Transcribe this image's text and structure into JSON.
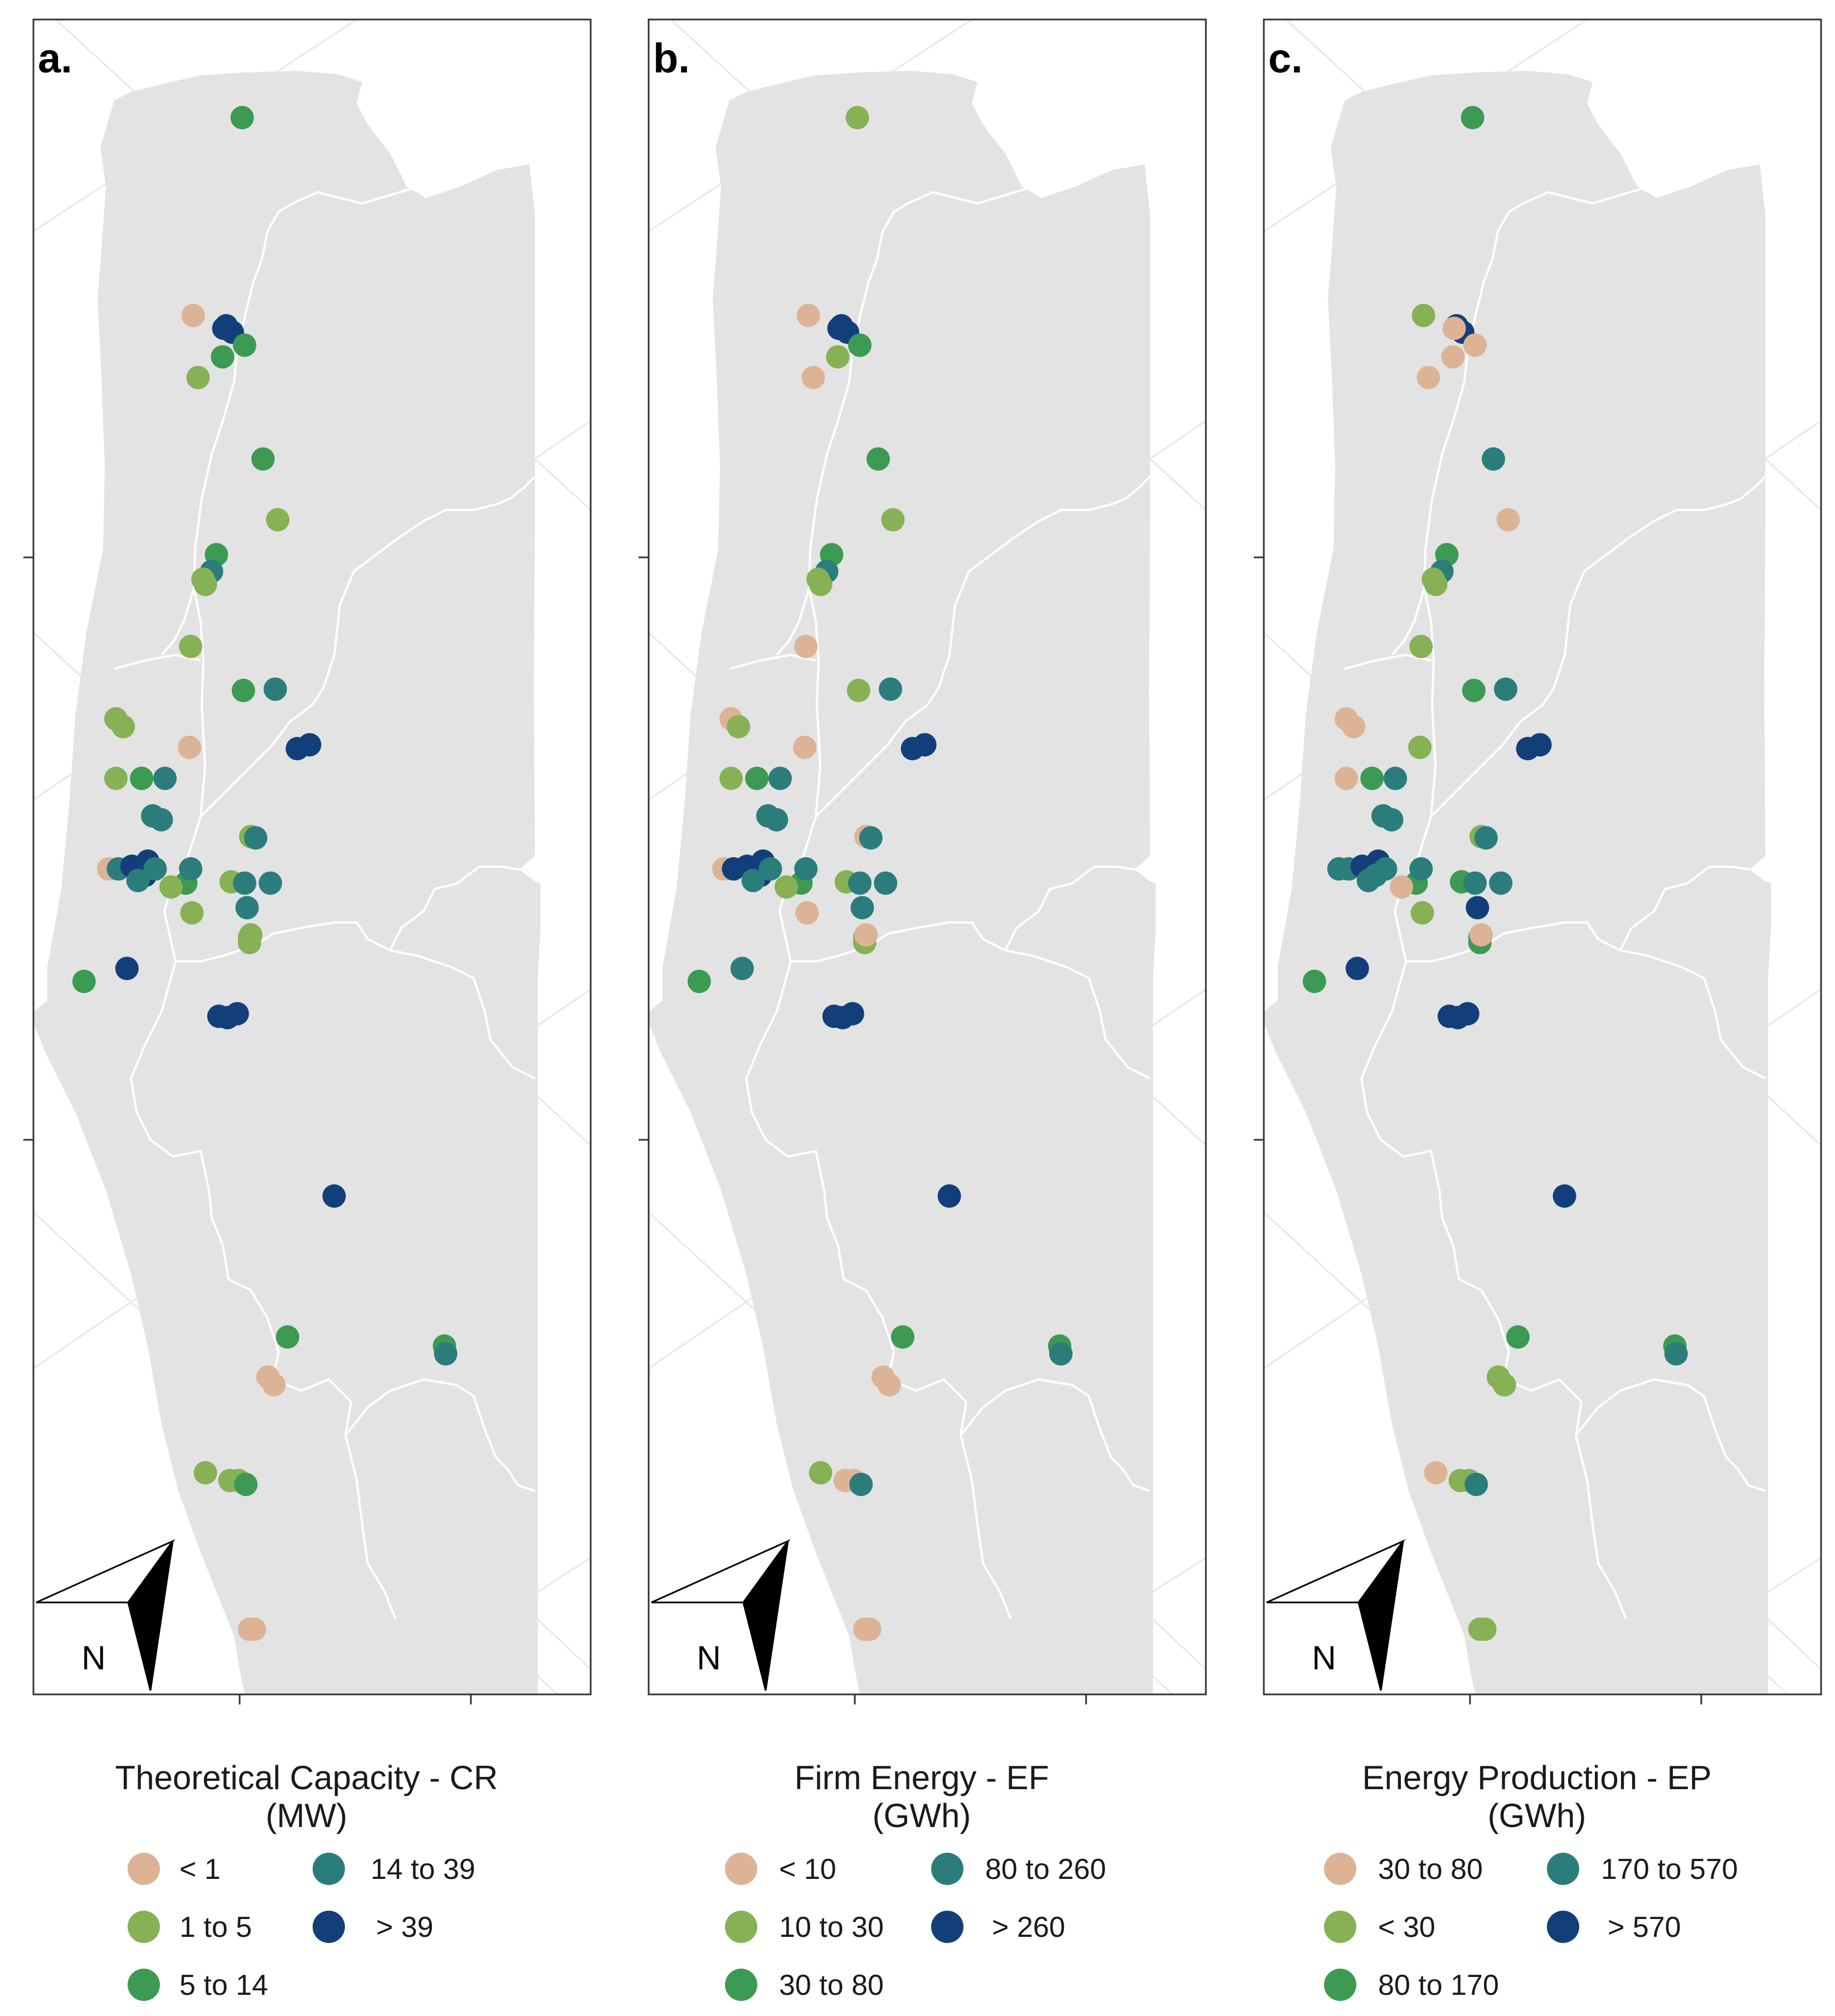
{
  "colors": {
    "land": "#e3e3e3",
    "boundary": "#ffffff",
    "graticule": "#e8e8e8",
    "frame": "#333333",
    "class1": "#dcb495",
    "class2": "#86b155",
    "class3": "#3c9a52",
    "class4": "#2b7d7c",
    "class5": "#123f7a"
  },
  "north_arrow": {
    "label": "N",
    "icon": "north-arrow-icon"
  },
  "panels": [
    {
      "label": "a.",
      "legend": {
        "title_line1": "Theoretical Capacity - CR",
        "title_line2": "(MW)",
        "items": [
          {
            "label": "< 1",
            "color": "#dcb495"
          },
          {
            "label": "1  to  5",
            "color": "#86b155"
          },
          {
            "label": "5  to  14",
            "color": "#3c9a52"
          },
          {
            "label": "14  to  39",
            "color": "#2b7d7c"
          },
          {
            "label": "> 39",
            "color": "#123f7a"
          }
        ]
      },
      "points": [
        [
          1,
          "g"
        ],
        [
          2,
          "p"
        ],
        [
          3,
          "b"
        ],
        [
          4,
          "b"
        ],
        [
          5,
          "b"
        ],
        [
          6,
          "g"
        ],
        [
          7,
          "g"
        ],
        [
          8,
          "l"
        ],
        [
          9,
          "g"
        ],
        [
          10,
          "l"
        ],
        [
          11,
          "g"
        ],
        [
          12,
          "t"
        ],
        [
          13,
          "l"
        ],
        [
          14,
          "l"
        ],
        [
          15,
          "l"
        ],
        [
          16,
          "g"
        ],
        [
          17,
          "t"
        ],
        [
          18,
          "l"
        ],
        [
          19,
          "l"
        ],
        [
          20,
          "p"
        ],
        [
          21,
          "b"
        ],
        [
          22,
          "b"
        ],
        [
          23,
          "l"
        ],
        [
          24,
          "g"
        ],
        [
          25,
          "t"
        ],
        [
          26,
          "t"
        ],
        [
          27,
          "t"
        ],
        [
          28,
          "l"
        ],
        [
          29,
          "t"
        ],
        [
          30,
          "p"
        ],
        [
          31,
          "t"
        ],
        [
          32,
          "b"
        ],
        [
          33,
          "b"
        ],
        [
          34,
          "b"
        ],
        [
          35,
          "t"
        ],
        [
          36,
          "t"
        ],
        [
          37,
          "g"
        ],
        [
          38,
          "l"
        ],
        [
          39,
          "l"
        ],
        [
          40,
          "t"
        ],
        [
          41,
          "l"
        ],
        [
          42,
          "t"
        ],
        [
          43,
          "t"
        ],
        [
          44,
          "t"
        ],
        [
          45,
          "l"
        ],
        [
          46,
          "l"
        ],
        [
          47,
          "l"
        ],
        [
          48,
          "g"
        ],
        [
          49,
          "b"
        ],
        [
          50,
          "b"
        ],
        [
          51,
          "b"
        ],
        [
          52,
          "b"
        ],
        [
          53,
          "b"
        ],
        [
          54,
          "g"
        ],
        [
          55,
          "g"
        ],
        [
          56,
          "t"
        ],
        [
          57,
          "p"
        ],
        [
          58,
          "p"
        ],
        [
          59,
          "l"
        ],
        [
          60,
          "l"
        ],
        [
          61,
          "l"
        ],
        [
          62,
          "g"
        ],
        [
          63,
          "p"
        ],
        [
          64,
          "p"
        ]
      ]
    },
    {
      "label": "b.",
      "legend": {
        "title_line1": "Firm Energy - EF",
        "title_line2": "(GWh)",
        "items": [
          {
            "label": "< 10",
            "color": "#dcb495"
          },
          {
            "label": "10  to  30",
            "color": "#86b155"
          },
          {
            "label": "30  to  80",
            "color": "#3c9a52"
          },
          {
            "label": "80  to  260",
            "color": "#2b7d7c"
          },
          {
            "label": "> 260",
            "color": "#123f7a"
          }
        ]
      },
      "points": [
        [
          1,
          "l"
        ],
        [
          2,
          "p"
        ],
        [
          3,
          "b"
        ],
        [
          4,
          "b"
        ],
        [
          5,
          "b"
        ],
        [
          6,
          "g"
        ],
        [
          7,
          "l"
        ],
        [
          8,
          "p"
        ],
        [
          9,
          "g"
        ],
        [
          10,
          "l"
        ],
        [
          11,
          "g"
        ],
        [
          12,
          "t"
        ],
        [
          13,
          "l"
        ],
        [
          14,
          "l"
        ],
        [
          15,
          "p"
        ],
        [
          16,
          "l"
        ],
        [
          17,
          "t"
        ],
        [
          18,
          "p"
        ],
        [
          19,
          "l"
        ],
        [
          20,
          "p"
        ],
        [
          21,
          "b"
        ],
        [
          22,
          "b"
        ],
        [
          23,
          "l"
        ],
        [
          24,
          "g"
        ],
        [
          25,
          "t"
        ],
        [
          26,
          "t"
        ],
        [
          27,
          "t"
        ],
        [
          28,
          "p"
        ],
        [
          29,
          "t"
        ],
        [
          30,
          "p"
        ],
        [
          31,
          "b"
        ],
        [
          32,
          "b"
        ],
        [
          33,
          "b"
        ],
        [
          34,
          "b"
        ],
        [
          35,
          "t"
        ],
        [
          36,
          "t"
        ],
        [
          37,
          "g"
        ],
        [
          38,
          "l"
        ],
        [
          39,
          "l"
        ],
        [
          40,
          "t"
        ],
        [
          41,
          "p"
        ],
        [
          42,
          "t"
        ],
        [
          43,
          "t"
        ],
        [
          44,
          "t"
        ],
        [
          45,
          "l"
        ],
        [
          46,
          "l"
        ],
        [
          47,
          "p"
        ],
        [
          48,
          "g"
        ],
        [
          49,
          "t"
        ],
        [
          50,
          "b"
        ],
        [
          51,
          "b"
        ],
        [
          52,
          "b"
        ],
        [
          53,
          "b"
        ],
        [
          54,
          "g"
        ],
        [
          55,
          "g"
        ],
        [
          56,
          "t"
        ],
        [
          57,
          "p"
        ],
        [
          58,
          "p"
        ],
        [
          59,
          "l"
        ],
        [
          60,
          "p"
        ],
        [
          61,
          "p"
        ],
        [
          62,
          "t"
        ],
        [
          63,
          "p"
        ],
        [
          64,
          "p"
        ]
      ]
    },
    {
      "label": "c.",
      "legend": {
        "title_line1": "Energy Production - EP",
        "title_line2": "(GWh)",
        "items": [
          {
            "label": "30  to  80",
            "color": "#dcb495"
          },
          {
            "label": "<  30",
            "color": "#86b155"
          },
          {
            "label": "80  to  170",
            "color": "#3c9a52"
          },
          {
            "label": "170  to  570",
            "color": "#2b7d7c"
          },
          {
            "label": "> 570",
            "color": "#123f7a"
          }
        ]
      },
      "points": [
        [
          1,
          "g"
        ],
        [
          2,
          "l"
        ],
        [
          3,
          "b"
        ],
        [
          4,
          "b"
        ],
        [
          5,
          "p"
        ],
        [
          6,
          "p"
        ],
        [
          7,
          "p"
        ],
        [
          8,
          "p"
        ],
        [
          9,
          "t"
        ],
        [
          10,
          "p"
        ],
        [
          11,
          "g"
        ],
        [
          12,
          "t"
        ],
        [
          13,
          "l"
        ],
        [
          14,
          "l"
        ],
        [
          15,
          "l"
        ],
        [
          16,
          "g"
        ],
        [
          17,
          "t"
        ],
        [
          18,
          "p"
        ],
        [
          19,
          "p"
        ],
        [
          20,
          "l"
        ],
        [
          21,
          "b"
        ],
        [
          22,
          "b"
        ],
        [
          23,
          "p"
        ],
        [
          24,
          "g"
        ],
        [
          25,
          "t"
        ],
        [
          26,
          "t"
        ],
        [
          27,
          "t"
        ],
        [
          28,
          "l"
        ],
        [
          29,
          "t"
        ],
        [
          30,
          "t"
        ],
        [
          31,
          "t"
        ],
        [
          32,
          "b"
        ],
        [
          33,
          "b"
        ],
        [
          34,
          "t"
        ],
        [
          35,
          "t"
        ],
        [
          36,
          "t"
        ],
        [
          37,
          "g"
        ],
        [
          38,
          "p"
        ],
        [
          39,
          "g"
        ],
        [
          40,
          "t"
        ],
        [
          41,
          "l"
        ],
        [
          42,
          "t"
        ],
        [
          43,
          "t"
        ],
        [
          44,
          "b"
        ],
        [
          45,
          "g"
        ],
        [
          46,
          "g"
        ],
        [
          47,
          "p"
        ],
        [
          48,
          "g"
        ],
        [
          49,
          "b"
        ],
        [
          50,
          "b"
        ],
        [
          51,
          "b"
        ],
        [
          52,
          "b"
        ],
        [
          53,
          "b"
        ],
        [
          54,
          "g"
        ],
        [
          55,
          "g"
        ],
        [
          56,
          "t"
        ],
        [
          57,
          "l"
        ],
        [
          58,
          "l"
        ],
        [
          59,
          "p"
        ],
        [
          60,
          "l"
        ],
        [
          61,
          "l"
        ],
        [
          62,
          "t"
        ],
        [
          63,
          "l"
        ],
        [
          64,
          "l"
        ]
      ]
    }
  ]
}
